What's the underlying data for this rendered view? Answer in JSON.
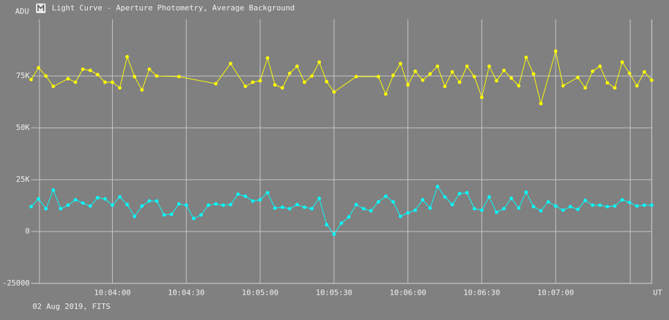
{
  "window_title": "Light Curve - Aperture Photometry, Average Background",
  "footer": "02 Aug 2019, FITS",
  "chart_data": {
    "type": "line",
    "ylabel": "ADU",
    "xlabel": "UT",
    "xlim": [
      36207,
      36459
    ],
    "xticks": [
      {
        "value": 36240,
        "label": "10:04:00"
      },
      {
        "value": 36270,
        "label": "10:04:30"
      },
      {
        "value": 36300,
        "label": "10:05:00"
      },
      {
        "value": 36330,
        "label": "10:05:30"
      },
      {
        "value": 36360,
        "label": "10:06:00"
      },
      {
        "value": 36390,
        "label": "10:06:30"
      },
      {
        "value": 36420,
        "label": "10:07:00"
      }
    ],
    "ylim": [
      -25000,
      100000
    ],
    "yticks": [
      -25000,
      0,
      {
        "value": 25000,
        "label": "25K"
      },
      {
        "value": 50000,
        "label": "50K"
      },
      {
        "value": 75000,
        "label": "75K"
      }
    ],
    "grid": true,
    "series": [
      {
        "color": "#ffff00",
        "x": [
          36207,
          36210,
          36213,
          36216,
          36222,
          36225,
          36228,
          36231,
          36234,
          36237,
          36240,
          36243,
          36246,
          36249,
          36252,
          36255,
          36258,
          36267,
          36282,
          36288,
          36294,
          36297,
          36300,
          36303,
          36306,
          36309,
          36312,
          36315,
          36318,
          36321,
          36324,
          36327,
          36330,
          36339,
          36348,
          36351,
          36354,
          36357,
          36360,
          36363,
          36366,
          36369,
          36372,
          36375,
          36378,
          36381,
          36384,
          36387,
          36390,
          36393,
          36396,
          36399,
          36402,
          36405,
          36408,
          36411,
          36414,
          36420,
          36423,
          36429,
          36432,
          36435,
          36438,
          36441,
          36444,
          36447,
          36450,
          36453,
          36456,
          36459
        ],
        "values": [
          73300,
          79000,
          75000,
          70000,
          73700,
          72000,
          78300,
          77700,
          75700,
          72000,
          72000,
          69300,
          84300,
          74700,
          68300,
          78300,
          75000,
          74700,
          71300,
          81000,
          70000,
          72000,
          72700,
          83700,
          70700,
          69300,
          76300,
          79700,
          72000,
          75000,
          81700,
          72300,
          67300,
          74700,
          74700,
          66300,
          75300,
          81000,
          70700,
          77300,
          73000,
          76000,
          79700,
          70000,
          77000,
          72000,
          79700,
          74700,
          64700,
          79700,
          72700,
          77700,
          74000,
          70300,
          84000,
          76000,
          61700,
          87000,
          70300,
          74300,
          69300,
          77300,
          79700,
          71700,
          69300,
          81700,
          76300,
          70300,
          77000,
          73000
        ]
      },
      {
        "color": "#00ffff",
        "x": [
          36207,
          36210,
          36213,
          36216,
          36219,
          36222,
          36225,
          36228,
          36231,
          36234,
          36237,
          36240,
          36243,
          36246,
          36249,
          36252,
          36255,
          36258,
          36261,
          36264,
          36267,
          36270,
          36273,
          36276,
          36279,
          36282,
          36285,
          36288,
          36291,
          36294,
          36297,
          36300,
          36303,
          36306,
          36309,
          36312,
          36315,
          36318,
          36321,
          36324,
          36327,
          36330,
          36333,
          36336,
          36339,
          36342,
          36345,
          36348,
          36351,
          36354,
          36357,
          36360,
          36363,
          36366,
          36369,
          36372,
          36375,
          36378,
          36381,
          36384,
          36387,
          36390,
          36393,
          36396,
          36399,
          36402,
          36405,
          36408,
          36411,
          36414,
          36417,
          36420,
          36423,
          36426,
          36429,
          36432,
          36435,
          36438,
          36441,
          36444,
          36447,
          36450,
          36453,
          36456,
          36459
        ],
        "values": [
          12000,
          15700,
          11000,
          20000,
          11000,
          12700,
          15300,
          13700,
          12300,
          16300,
          15700,
          12700,
          16700,
          13000,
          7300,
          12300,
          14700,
          14700,
          8000,
          8300,
          13300,
          12700,
          6300,
          8000,
          12700,
          13300,
          12700,
          13000,
          18000,
          17000,
          14700,
          15300,
          18700,
          11300,
          11700,
          11000,
          13000,
          11700,
          11000,
          16000,
          3300,
          -1300,
          4000,
          7000,
          13000,
          11000,
          10000,
          14300,
          17000,
          14300,
          7300,
          9000,
          10300,
          15300,
          11300,
          21700,
          16700,
          13000,
          18300,
          18700,
          11000,
          10300,
          16700,
          9300,
          11000,
          16000,
          11300,
          19000,
          12000,
          10000,
          14300,
          12300,
          10300,
          12000,
          10700,
          15000,
          12700,
          12700,
          12000,
          12300,
          15300,
          14000,
          12300,
          12700,
          12700
        ]
      }
    ]
  }
}
